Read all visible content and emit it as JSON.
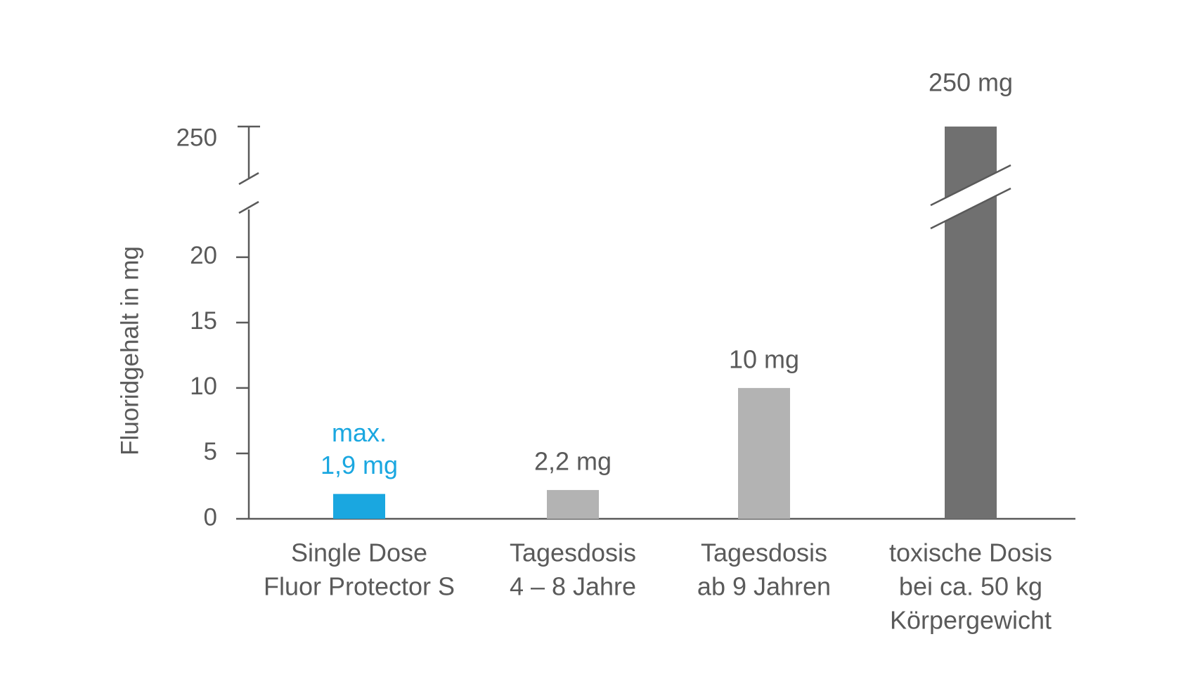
{
  "chart_data": {
    "type": "bar",
    "y_label": "Fluoridgehalt in mg",
    "categories": [
      [
        "Single Dose",
        "Fluor Protector S"
      ],
      [
        "Tagesdosis",
        "4 – 8 Jahre"
      ],
      [
        "Tagesdosis",
        "ab 9 Jahren"
      ],
      [
        "toxische Dosis",
        "bei ca. 50 kg",
        "Körpergewicht"
      ]
    ],
    "values": [
      1.9,
      2.2,
      10,
      250
    ],
    "value_labels": [
      [
        "max.",
        "1,9 mg"
      ],
      [
        "2,2 mg"
      ],
      [
        "10 mg"
      ],
      [
        "250 mg"
      ]
    ],
    "colors": [
      "#1aa7e0",
      "#b3b3b3",
      "#b3b3b3",
      "#707070"
    ],
    "value_label_colors": [
      "#1aa7e0",
      "#5a5a5a",
      "#5a5a5a",
      "#5a5a5a"
    ],
    "ylim": [
      0,
      250
    ],
    "ybreak": [
      23,
      245
    ],
    "yticks": [
      0,
      5,
      10,
      15,
      20,
      250
    ]
  }
}
